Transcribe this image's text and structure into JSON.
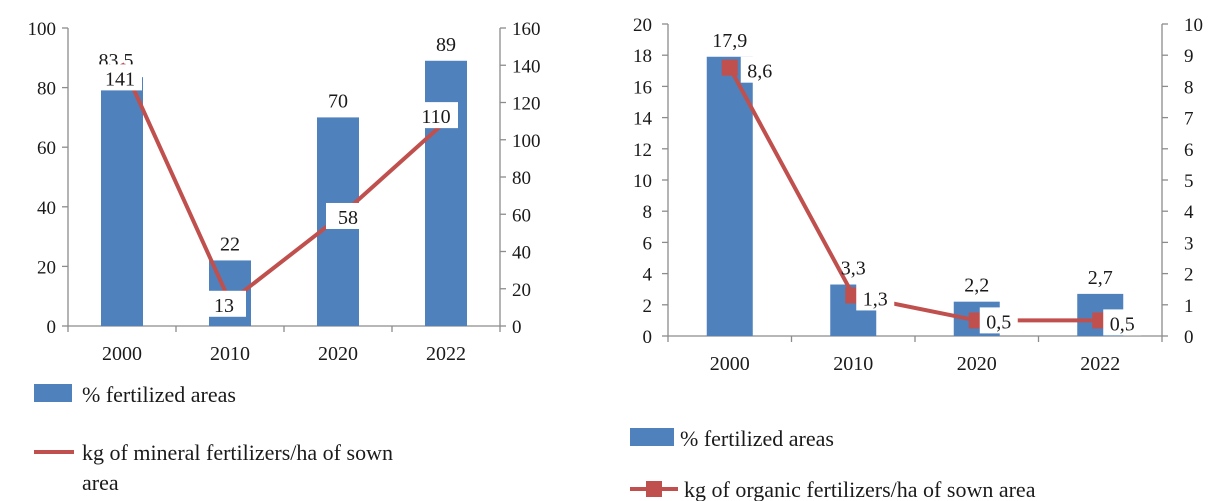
{
  "chart_data": [
    {
      "type": "bar",
      "categories": [
        "2000",
        "2010",
        "2020",
        "2022"
      ],
      "series": [
        {
          "name": "% fertilized  areas",
          "type": "bar",
          "axis": "left",
          "values": [
            83.5,
            22,
            70,
            89
          ],
          "labels": [
            "83,5",
            "22",
            "70",
            "89"
          ],
          "color": "#4f81bd"
        },
        {
          "name": "kg of mineral  fertilizers/ha  of sown area",
          "type": "line",
          "axis": "right",
          "values": [
            141,
            13,
            58,
            110
          ],
          "labels": [
            "141",
            "13",
            "58",
            "110"
          ],
          "color": "#c0504d"
        }
      ],
      "y_left": {
        "min": 0,
        "max": 100,
        "ticks": [
          "0",
          "20",
          "40",
          "60",
          "80",
          "100"
        ]
      },
      "y_right": {
        "min": 0,
        "max": 160,
        "ticks": [
          "0",
          "20",
          "40",
          "60",
          "80",
          "100",
          "120",
          "140",
          "160"
        ]
      },
      "legend_position": "bottom",
      "grid": false
    },
    {
      "type": "bar",
      "categories": [
        "2000",
        "2010",
        "2020",
        "2022"
      ],
      "series": [
        {
          "name": "% fertilized  areas",
          "type": "bar",
          "axis": "left",
          "values": [
            17.9,
            3.3,
            2.2,
            2.7
          ],
          "labels": [
            "17,9",
            "3,3",
            "2,2",
            "2,7"
          ],
          "color": "#4f81bd"
        },
        {
          "name": "kg of  organic fertilizers/ha  of sown area",
          "type": "line",
          "marker": "square",
          "axis": "right",
          "values": [
            8.6,
            1.3,
            0.5,
            0.5
          ],
          "labels": [
            "8,6",
            "1,3",
            "0,5",
            "0,5"
          ],
          "color": "#c0504d"
        }
      ],
      "y_left": {
        "min": 0,
        "max": 20,
        "ticks": [
          "0",
          "2",
          "4",
          "6",
          "8",
          "10",
          "12",
          "14",
          "16",
          "18",
          "20"
        ]
      },
      "y_right": {
        "min": 0,
        "max": 10,
        "ticks": [
          "0",
          "1",
          "2",
          "3",
          "4",
          "5",
          "6",
          "7",
          "8",
          "9",
          "10"
        ]
      },
      "legend_position": "bottom",
      "grid": false
    }
  ]
}
